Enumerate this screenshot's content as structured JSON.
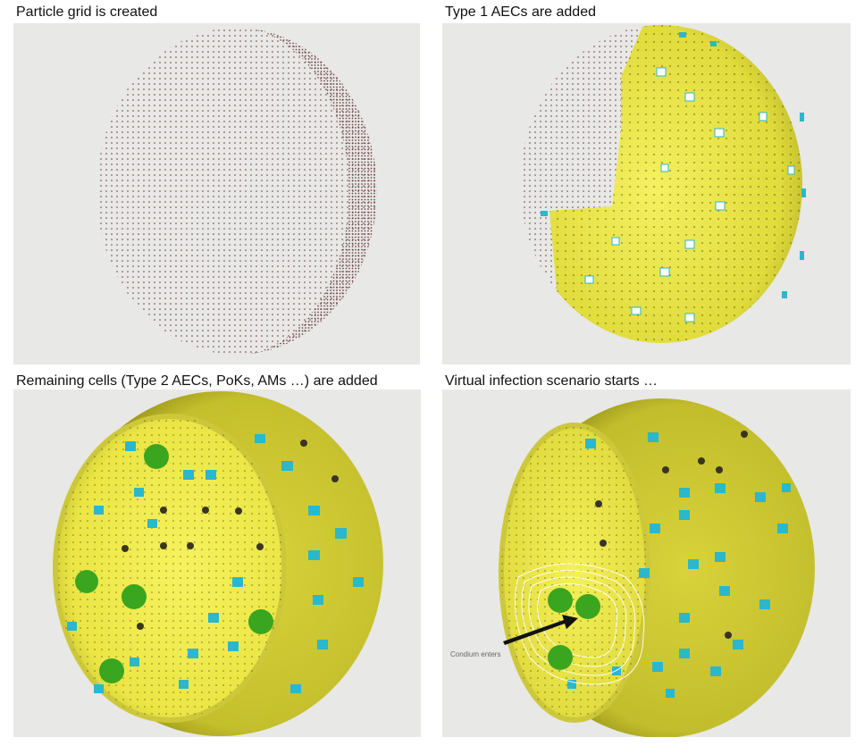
{
  "panels": [
    {
      "caption": "Particle grid is created"
    },
    {
      "caption": "Type 1 AECs are added"
    },
    {
      "caption": "Remaining cells (Type 2 AECs, PoKs, AMs …) are added"
    },
    {
      "caption": "Virtual infection scenario starts …",
      "annotation": "Condium enters"
    }
  ],
  "colors": {
    "background": "#e8e8e6",
    "particle": "#6b3a3a",
    "aec1_yellow": "#e7e34a",
    "aec1_dark": "#b8b32a",
    "aec2_cyan": "#2bb7cc",
    "macrophage_green": "#3aa51f",
    "arrow": "#111111"
  }
}
